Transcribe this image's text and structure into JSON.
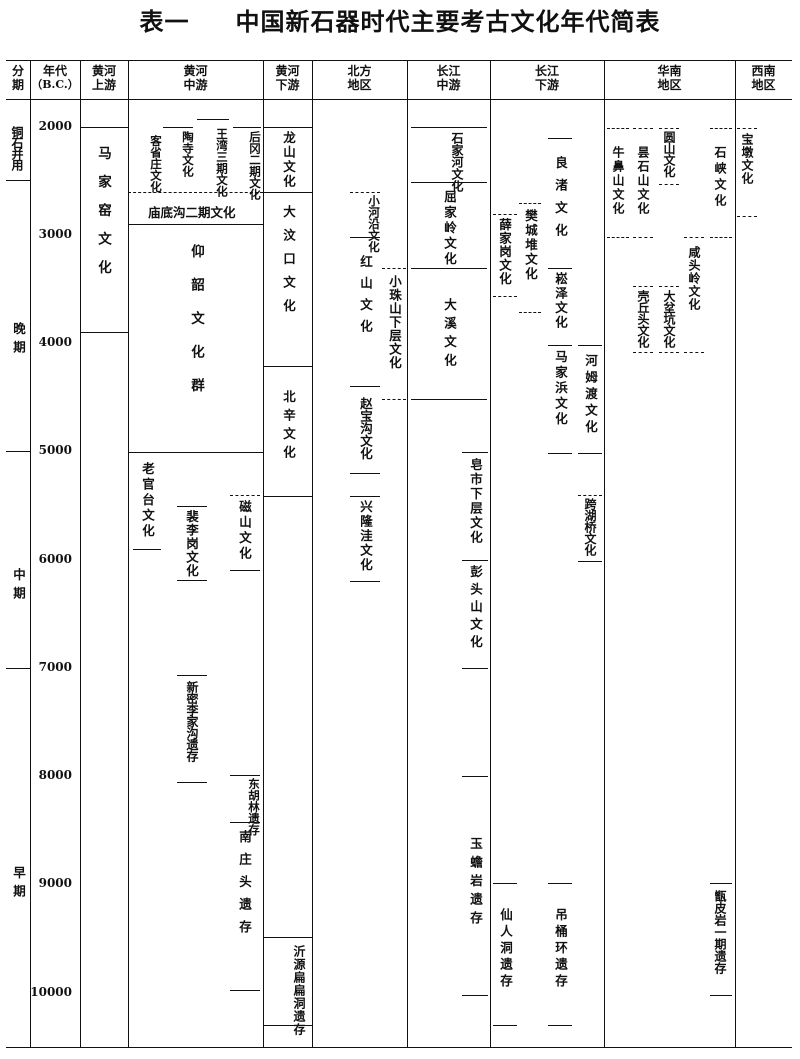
{
  "title": {
    "label": "表一",
    "text": "中国新石器时代主要考古文化年代简表"
  },
  "headers": {
    "period": [
      "分",
      "期"
    ],
    "year": [
      "年代",
      "（B.C.）"
    ],
    "hh_upper": [
      "黄河",
      "上游"
    ],
    "hh_middle": [
      "黄河",
      "中游"
    ],
    "hh_lower": [
      "黄河",
      "下游"
    ],
    "north": [
      "北方",
      "地区"
    ],
    "cj_middle": [
      "长江",
      "中游"
    ],
    "cj_lower": [
      "长江",
      "下游"
    ],
    "south": [
      "华南",
      "地区"
    ],
    "southwest": [
      "西南",
      "地区"
    ]
  },
  "periods": {
    "bronze": "铜石并用",
    "late": "晚期",
    "middle": "中期",
    "early": "早期"
  },
  "years": [
    "2000",
    "3000",
    "4000",
    "5000",
    "6000",
    "7000",
    "8000",
    "9000",
    "10000"
  ],
  "cultures": {
    "majiayao": "马家窑文化",
    "kezuozhuang": "客省庄文化",
    "taosi": "陶寺文化",
    "wangwan": "王湾三期文化",
    "hougang": "后冈二期文化",
    "miaodigou": "庙底沟二期文化",
    "yangshao": "仰韶文化群",
    "laoguantai": "老官台文化",
    "peiligang": "裴李岗文化",
    "cishan": "磁山文化",
    "xinmi": "新密李家沟遗存",
    "donghulin": "东胡林遗存",
    "nanzhuangtou": "南庄头遗存",
    "longshan": "龙山文化",
    "dawenkou": "大汶口文化",
    "beixin": "北辛文化",
    "yiyuan": "沂源扁扁洞遗存",
    "xiaoheyan": "小河沿文化",
    "hongshan": "红山文化",
    "xiaozhushan": "小珠山下层文化",
    "zhaobaogou": "赵宝沟文化",
    "xinglongwa": "兴隆洼文化",
    "shijiahe": "石家河文化",
    "qujialing": "屈家岭文化",
    "daxi": "大溪文化",
    "zaoshi": "皂市下层文化",
    "pengtoushan": "彭头山文化",
    "yuchanyan": "玉蟾岩遗存",
    "xuejiagang": "薛家岗文化",
    "fanchengdui": "樊城堆文化",
    "liangzhu": "良渚文化",
    "songze": "崧泽文化",
    "majiabang": "马家浜文化",
    "hemudu": "河姆渡文化",
    "kuahuqiao": "跨湖桥文化",
    "xianrendong": "仙人洞遗存",
    "diaotonghuan": "吊桶环遗存",
    "niubishan": "牛鼻山文化",
    "tanshishan": "昙石山文化",
    "yuanshan": "圆山文化",
    "keqiutou": "壳丘头文化",
    "dabenkeng": "大坌坑文化",
    "xiantouling": "咸头岭文化",
    "shixia": "石峡文化",
    "zengpiyan": "甑皮岩一期遗存",
    "baodun": "宝墩文化"
  }
}
